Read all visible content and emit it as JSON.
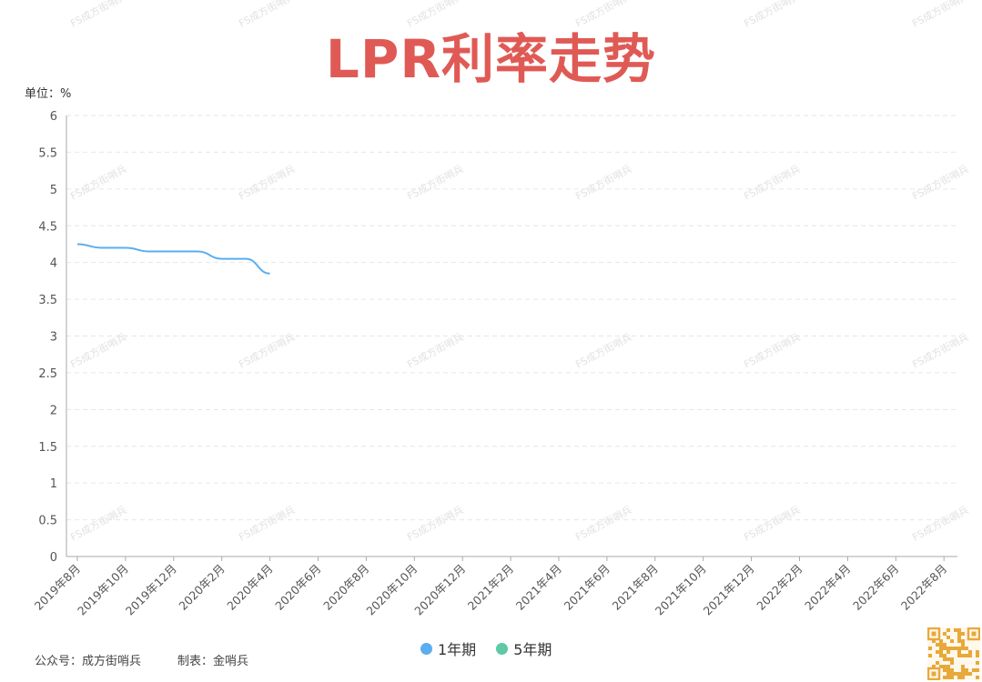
{
  "header": {
    "title": "LPR利率走势",
    "unit": "单位：%"
  },
  "watermark": {
    "text": "FS成方街哨兵"
  },
  "footer": {
    "source": "公众号：成方街哨兵",
    "maker": "制表：金哨兵"
  },
  "colors": {
    "title": "#e05a55",
    "series_1y": "#5aaef0",
    "series_5y": "#5ec9a4",
    "grid": "#e6e6e6",
    "qr": "#e8a93a"
  },
  "chart_data": {
    "type": "line",
    "ylim": [
      0,
      6
    ],
    "yticks": [
      "0",
      "0.5",
      "1",
      "1.5",
      "2",
      "2.5",
      "3",
      "3.5",
      "4",
      "4.5",
      "5",
      "5.5",
      "6"
    ],
    "xticks": [
      "2019年8月",
      "2019年10月",
      "2019年12月",
      "2020年2月",
      "2020年4月",
      "2020年6月",
      "2020年8月",
      "2020年10月",
      "2020年12月",
      "2021年2月",
      "2021年4月",
      "2021年6月",
      "2021年8月",
      "2021年10月",
      "2021年12月",
      "2022年2月",
      "2022年4月",
      "2022年6月",
      "2022年8月"
    ],
    "grid": true,
    "legend_position": "bottom",
    "series": [
      {
        "name": "1年期",
        "x": [
          "2019-08",
          "2019-09",
          "2019-10",
          "2019-11",
          "2019-12",
          "2020-01",
          "2020-02",
          "2020-03",
          "2020-04"
        ],
        "values": [
          4.25,
          4.2,
          4.2,
          4.15,
          4.15,
          4.15,
          4.05,
          4.05,
          3.85
        ]
      },
      {
        "name": "5年期",
        "x": [],
        "values": []
      }
    ]
  }
}
